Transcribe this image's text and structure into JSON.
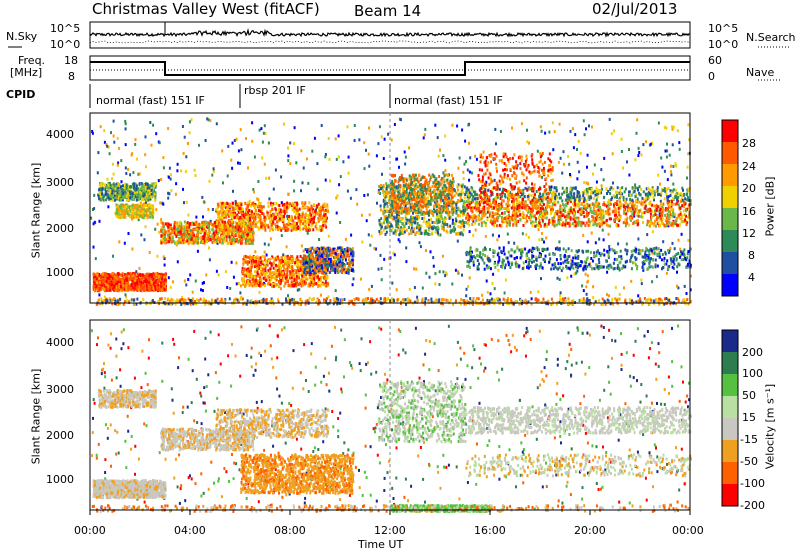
{
  "header": {
    "title": "Christmas Valley West (fitACF)",
    "beam": "Beam 14",
    "date": "02/Jul/2013"
  },
  "top_panels": {
    "nsky_label": "N.Sky",
    "nsky_ticks": [
      "10^5",
      "10^0"
    ],
    "nsearch_ticks": [
      "10^5",
      "10^0"
    ],
    "nsearch_label": "N.Search",
    "freq_label": [
      "Freq.",
      "[MHz]"
    ],
    "freq_ticks": [
      "18",
      "8"
    ],
    "nave_ticks": [
      "60",
      "0"
    ],
    "nave_label": "Nave",
    "cpid_label": "CPID",
    "cpid_segments": [
      {
        "label": "normal (fast) 151 IF",
        "start": 0,
        "end": 6
      },
      {
        "label": "rbsp 201 IF",
        "start": 6,
        "end": 12
      },
      {
        "label": "normal (fast) 151 IF",
        "start": 12,
        "end": 24
      }
    ]
  },
  "x_axis": {
    "label": "Time UT",
    "ticks": [
      "00:00",
      "04:00",
      "08:00",
      "12:00",
      "16:00",
      "20:00",
      "00:00"
    ]
  },
  "power_panel": {
    "ylabel": "Slant Range [km]",
    "yticks": [
      "4000",
      "3000",
      "2000",
      "1000"
    ],
    "colorbar_label": "Power [dB]",
    "colorbar_ticks": [
      "28",
      "24",
      "20",
      "16",
      "12",
      "8",
      "4"
    ],
    "colors": [
      "#ff0000",
      "#ff5a00",
      "#ff9a00",
      "#f0d000",
      "#6ab84a",
      "#2e8b57",
      "#1f4fa0",
      "#0000ff"
    ]
  },
  "velocity_panel": {
    "ylabel": "Slant Range [km]",
    "yticks": [
      "4000",
      "3000",
      "2000",
      "1000"
    ],
    "colorbar_label": "Velocity [m s⁻¹]",
    "colorbar_ticks": [
      "200",
      "100",
      "50",
      "15",
      "-15",
      "-50",
      "-100",
      "-200"
    ],
    "colors": [
      "#1a2a8a",
      "#2e7d4f",
      "#56c040",
      "#b8e0a0",
      "#c8c8c0",
      "#f0a020",
      "#ff6000",
      "#ff0000"
    ]
  },
  "chart_data": [
    {
      "type": "heatmap",
      "title": "Christmas Valley West (fitACF)",
      "xlabel": "Time UT",
      "ylabel": "Slant Range [km]",
      "xlim": [
        0,
        24
      ],
      "ylim": [
        180,
        4600
      ],
      "colorbar": {
        "label": "Power [dB]",
        "range": [
          0,
          32
        ]
      },
      "scatter_regions": [
        {
          "t": [
            0,
            3
          ],
          "range_km": [
            500,
            900
          ],
          "power_db": 26
        },
        {
          "t": [
            0.3,
            2.5
          ],
          "range_km": [
            2600,
            3000
          ],
          "power_db": 12
        },
        {
          "t": [
            2.5,
            9.5
          ],
          "range_km": [
            1500,
            2600
          ],
          "power_db": 22
        },
        {
          "t": [
            6.5,
            10.5
          ],
          "range_km": [
            500,
            1500
          ],
          "power_db": 24
        },
        {
          "t": [
            11.5,
            15
          ],
          "range_km": [
            1800,
            3200
          ],
          "power_db": 18
        },
        {
          "t": [
            15,
            24
          ],
          "range_km": [
            1800,
            3000
          ],
          "power_db": 22
        },
        {
          "t": [
            15,
            24
          ],
          "range_km": [
            1000,
            1600
          ],
          "power_db": 8
        }
      ]
    },
    {
      "type": "heatmap",
      "xlabel": "Time UT",
      "ylabel": "Slant Range [km]",
      "xlim": [
        0,
        24
      ],
      "ylim": [
        180,
        4600
      ],
      "colorbar": {
        "label": "Velocity [m s⁻¹]",
        "range": [
          -250,
          250
        ]
      },
      "scatter_regions": [
        {
          "t": [
            0,
            3
          ],
          "range_km": [
            500,
            900
          ],
          "velocity": 0
        },
        {
          "t": [
            2.5,
            9.5
          ],
          "range_km": [
            1500,
            2600
          ],
          "velocity": 0
        },
        {
          "t": [
            6.5,
            10.5
          ],
          "range_km": [
            500,
            1500
          ],
          "velocity": -60
        },
        {
          "t": [
            11.5,
            15
          ],
          "range_km": [
            1800,
            3200
          ],
          "velocity": 20
        },
        {
          "t": [
            15,
            24
          ],
          "range_km": [
            1800,
            3000
          ],
          "velocity": 0
        }
      ]
    }
  ]
}
